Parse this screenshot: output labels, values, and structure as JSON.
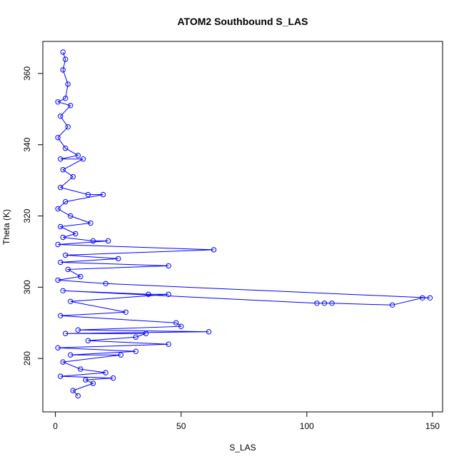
{
  "chart_data": {
    "type": "scatter",
    "title": "ATOM2 Southbound S_LAS",
    "xlabel": "S_LAS",
    "ylabel": "Theta (K)",
    "xlim": [
      -5,
      154
    ],
    "ylim": [
      265,
      369
    ],
    "x_ticks": [
      0,
      50,
      100,
      150
    ],
    "y_ticks": [
      280,
      300,
      320,
      340,
      360
    ],
    "grid": false,
    "style": "points connected by lines, open circle markers",
    "color": "#0000ff",
    "series": [
      {
        "values": [
          {
            "x": 3,
            "y": 366
          },
          {
            "x": 4,
            "y": 364
          },
          {
            "x": 3,
            "y": 361
          },
          {
            "x": 5,
            "y": 357
          },
          {
            "x": 4,
            "y": 353
          },
          {
            "x": 1,
            "y": 352
          },
          {
            "x": 6,
            "y": 351
          },
          {
            "x": 2,
            "y": 348
          },
          {
            "x": 5,
            "y": 345
          },
          {
            "x": 1,
            "y": 342
          },
          {
            "x": 4,
            "y": 339
          },
          {
            "x": 9,
            "y": 337
          },
          {
            "x": 2,
            "y": 336
          },
          {
            "x": 11,
            "y": 336
          },
          {
            "x": 3,
            "y": 333
          },
          {
            "x": 7,
            "y": 331
          },
          {
            "x": 2,
            "y": 328
          },
          {
            "x": 13,
            "y": 326
          },
          {
            "x": 19,
            "y": 326
          },
          {
            "x": 4,
            "y": 324
          },
          {
            "x": 1,
            "y": 322
          },
          {
            "x": 6,
            "y": 320
          },
          {
            "x": 14,
            "y": 318
          },
          {
            "x": 2,
            "y": 317
          },
          {
            "x": 8,
            "y": 315
          },
          {
            "x": 3,
            "y": 314
          },
          {
            "x": 15,
            "y": 313
          },
          {
            "x": 21,
            "y": 313
          },
          {
            "x": 1,
            "y": 312
          },
          {
            "x": 63,
            "y": 310.5
          },
          {
            "x": 4,
            "y": 309
          },
          {
            "x": 25,
            "y": 308
          },
          {
            "x": 2,
            "y": 307
          },
          {
            "x": 45,
            "y": 306
          },
          {
            "x": 5,
            "y": 305
          },
          {
            "x": 10,
            "y": 303
          },
          {
            "x": 1,
            "y": 302
          },
          {
            "x": 20,
            "y": 301
          },
          {
            "x": 149,
            "y": 297
          },
          {
            "x": 146,
            "y": 297
          },
          {
            "x": 134,
            "y": 295
          },
          {
            "x": 110,
            "y": 295.5
          },
          {
            "x": 107,
            "y": 295.5
          },
          {
            "x": 104,
            "y": 295.5
          },
          {
            "x": 3,
            "y": 299
          },
          {
            "x": 37,
            "y": 298
          },
          {
            "x": 45,
            "y": 298
          },
          {
            "x": 6,
            "y": 296
          },
          {
            "x": 28,
            "y": 293
          },
          {
            "x": 2,
            "y": 292
          },
          {
            "x": 48,
            "y": 290
          },
          {
            "x": 50,
            "y": 289
          },
          {
            "x": 9,
            "y": 288
          },
          {
            "x": 61,
            "y": 287.5
          },
          {
            "x": 4,
            "y": 287
          },
          {
            "x": 36,
            "y": 287
          },
          {
            "x": 32,
            "y": 286
          },
          {
            "x": 13,
            "y": 285
          },
          {
            "x": 45,
            "y": 284
          },
          {
            "x": 1,
            "y": 283
          },
          {
            "x": 32,
            "y": 282
          },
          {
            "x": 6,
            "y": 281
          },
          {
            "x": 26,
            "y": 281
          },
          {
            "x": 3,
            "y": 279
          },
          {
            "x": 10,
            "y": 277
          },
          {
            "x": 20,
            "y": 276
          },
          {
            "x": 2,
            "y": 275
          },
          {
            "x": 23,
            "y": 274.5
          },
          {
            "x": 12,
            "y": 274
          },
          {
            "x": 15,
            "y": 273
          },
          {
            "x": 7,
            "y": 271
          },
          {
            "x": 9,
            "y": 269.5
          }
        ]
      }
    ]
  }
}
